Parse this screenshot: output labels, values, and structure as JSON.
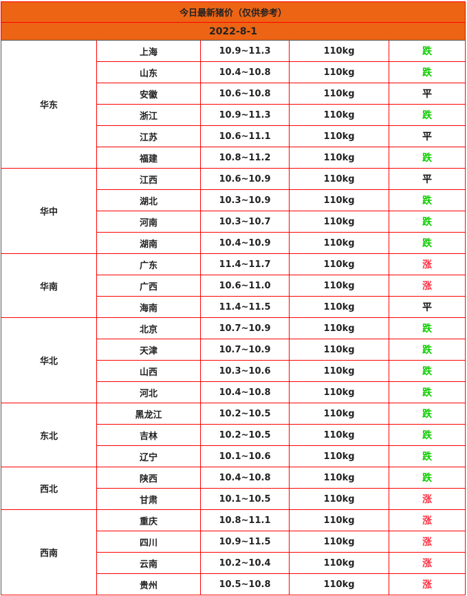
{
  "title": "今日最新猪价（仅供参考）",
  "date": "2022-8-1",
  "colors": {
    "header_bg": "#ec6414",
    "border": "#ff0000",
    "down": "#11cc00",
    "up": "#ff3344",
    "flat": "#111111"
  },
  "regions": [
    {
      "name": "华东",
      "rows": [
        [
          "上海",
          "10.9~11.3",
          "110kg",
          "跌"
        ],
        [
          "山东",
          "10.4~10.8",
          "110kg",
          "跌"
        ],
        [
          "安徽",
          "10.6~10.8",
          "110kg",
          "平"
        ],
        [
          "浙江",
          "10.9~11.3",
          "110kg",
          "跌"
        ],
        [
          "江苏",
          "10.6~11.1",
          "110kg",
          "平"
        ],
        [
          "福建",
          "10.8~11.2",
          "110kg",
          "跌"
        ]
      ]
    },
    {
      "name": "华中",
      "rows": [
        [
          "江西",
          "10.6~10.9",
          "110kg",
          "平"
        ],
        [
          "湖北",
          "10.3~10.9",
          "110kg",
          "跌"
        ],
        [
          "河南",
          "10.3~10.7",
          "110kg",
          "跌"
        ],
        [
          "湖南",
          "10.4~10.9",
          "110kg",
          "跌"
        ]
      ]
    },
    {
      "name": "华南",
      "rows": [
        [
          "广东",
          "11.4~11.7",
          "110kg",
          "涨"
        ],
        [
          "广西",
          "10.6~11.0",
          "110kg",
          "涨"
        ],
        [
          "海南",
          "11.4~11.5",
          "110kg",
          "平"
        ]
      ]
    },
    {
      "name": "华北",
      "rows": [
        [
          "北京",
          "10.7~10.9",
          "110kg",
          "跌"
        ],
        [
          "天津",
          "10.7~10.9",
          "110kg",
          "跌"
        ],
        [
          "山西",
          "10.3~10.6",
          "110kg",
          "跌"
        ],
        [
          "河北",
          "10.4~10.8",
          "110kg",
          "跌"
        ]
      ]
    },
    {
      "name": "东北",
      "rows": [
        [
          "黑龙江",
          "10.2~10.5",
          "110kg",
          "跌"
        ],
        [
          "吉林",
          "10.2~10.5",
          "110kg",
          "跌"
        ],
        [
          "辽宁",
          "10.1~10.6",
          "110kg",
          "跌"
        ]
      ]
    },
    {
      "name": "西北",
      "rows": [
        [
          "陕西",
          "10.4~10.8",
          "110kg",
          "跌"
        ],
        [
          "甘肃",
          "10.1~10.5",
          "110kg",
          "涨"
        ]
      ]
    },
    {
      "name": "西南",
      "rows": [
        [
          "重庆",
          "10.8~11.1",
          "110kg",
          "涨"
        ],
        [
          "四川",
          "10.9~11.5",
          "110kg",
          "涨"
        ],
        [
          "云南",
          "10.2~10.4",
          "110kg",
          "涨"
        ],
        [
          "贵州",
          "10.5~10.8",
          "110kg",
          "涨"
        ]
      ]
    }
  ]
}
